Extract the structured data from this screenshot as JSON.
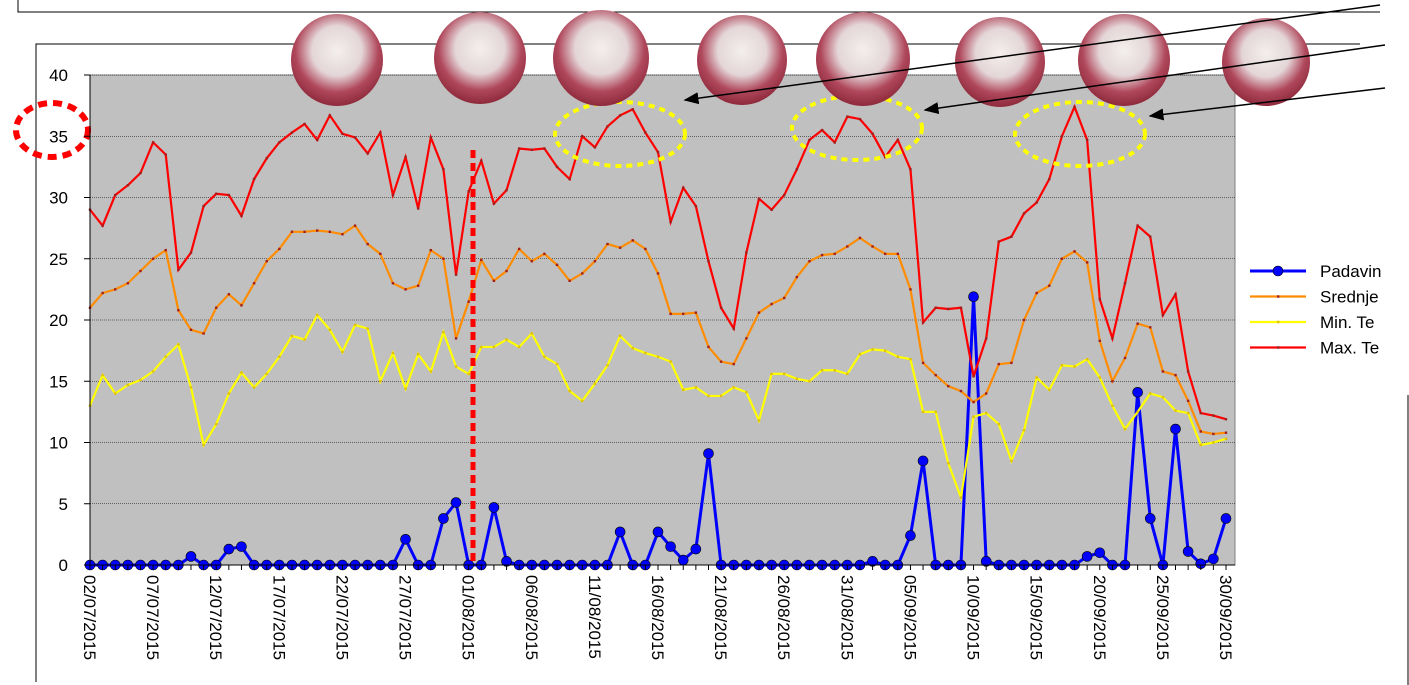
{
  "chart_data": {
    "type": "line",
    "categories": [
      "02/07/2015",
      null,
      null,
      null,
      null,
      "07/07/2015",
      null,
      null,
      null,
      null,
      "12/07/2015",
      null,
      null,
      null,
      null,
      "17/07/2015",
      null,
      null,
      null,
      null,
      "22/07/2015",
      null,
      null,
      null,
      null,
      "27/07/2015",
      null,
      null,
      null,
      null,
      "01/08/2015",
      null,
      null,
      null,
      null,
      "06/08/2015",
      null,
      null,
      null,
      null,
      "11/08/2015",
      null,
      null,
      null,
      null,
      "16/08/2015",
      null,
      null,
      null,
      null,
      "21/08/2015",
      null,
      null,
      null,
      null,
      "26/08/2015",
      null,
      null,
      null,
      null,
      "31/08/2015",
      null,
      null,
      null,
      null,
      "05/09/2015",
      null,
      null,
      null,
      null,
      "10/09/2015",
      null,
      null,
      null,
      null,
      "15/09/2015",
      null,
      null,
      null,
      null,
      "20/09/2015",
      null,
      null,
      null,
      null,
      "25/09/2015",
      null,
      null,
      null,
      null,
      "30/09/2015"
    ],
    "series": [
      {
        "name": "Padavin",
        "color": "#0000ff",
        "marker": "circle",
        "values": [
          0,
          0,
          0,
          0,
          0,
          0,
          0,
          0,
          0.7,
          0,
          0,
          1.3,
          1.5,
          0,
          0,
          0,
          0,
          0,
          0,
          0,
          0,
          0,
          0,
          0,
          0,
          2.1,
          0,
          0,
          3.8,
          5.1,
          0,
          0,
          4.7,
          0.3,
          0,
          0,
          0,
          0,
          0,
          0,
          0,
          0,
          2.7,
          0,
          0,
          2.7,
          1.5,
          0.4,
          1.3,
          9.1,
          0,
          0,
          0,
          0,
          0,
          0,
          0,
          0,
          0,
          0,
          0,
          0,
          0.3,
          0,
          0,
          2.4,
          8.5,
          0,
          0,
          0,
          21.9,
          0.3,
          0,
          0,
          0,
          0,
          0,
          0,
          0,
          0.7,
          1.0,
          0,
          0,
          14.1,
          3.8,
          0,
          11.1,
          1.1,
          0.1,
          0.5,
          3.8
        ]
      },
      {
        "name": "Srednje",
        "color": "#ff8c00",
        "marker": "dot",
        "values": [
          21.0,
          22.2,
          22.5,
          23.0,
          24.0,
          25.0,
          25.7,
          20.8,
          19.2,
          18.9,
          21.0,
          22.1,
          21.2,
          23.0,
          24.8,
          25.8,
          27.2,
          27.2,
          27.3,
          27.2,
          27.0,
          27.7,
          26.2,
          25.4,
          23.0,
          22.5,
          22.8,
          25.7,
          25.0,
          18.5,
          21.5,
          24.9,
          23.2,
          24.0,
          25.8,
          24.8,
          25.4,
          24.5,
          23.2,
          23.8,
          24.8,
          26.2,
          25.9,
          26.5,
          25.8,
          23.8,
          20.5,
          20.5,
          20.6,
          17.8,
          16.6,
          16.4,
          18.5,
          20.6,
          21.3,
          21.8,
          23.5,
          24.8,
          25.3,
          25.4,
          26.0,
          26.7,
          26.0,
          25.4,
          25.4,
          22.5,
          16.5,
          15.5,
          14.6,
          14.2,
          13.3,
          14.0,
          16.4,
          16.5,
          20.0,
          22.2,
          22.8,
          25.0,
          25.6,
          24.7,
          18.3,
          15.0,
          16.9,
          19.7,
          19.4,
          15.8,
          15.5,
          13.4,
          10.9,
          10.7,
          10.8
        ]
      },
      {
        "name": "Min. Te",
        "color": "#ffff00",
        "marker": "dot",
        "values": [
          13.0,
          15.5,
          14.0,
          14.7,
          15.1,
          15.8,
          17.0,
          18.0,
          14.5,
          9.8,
          11.5,
          14.0,
          15.7,
          14.5,
          15.6,
          17.0,
          18.7,
          18.4,
          20.4,
          19.2,
          17.4,
          19.6,
          19.3,
          15.0,
          17.3,
          14.4,
          17.2,
          15.8,
          19.0,
          16.2,
          15.6,
          17.8,
          17.8,
          18.4,
          17.8,
          18.9,
          17.0,
          16.4,
          14.2,
          13.4,
          14.8,
          16.3,
          18.7,
          17.7,
          17.3,
          17.0,
          16.6,
          14.3,
          14.5,
          13.8,
          13.8,
          14.5,
          14.1,
          11.8,
          15.6,
          15.6,
          15.2,
          15.0,
          15.9,
          15.9,
          15.6,
          17.2,
          17.6,
          17.5,
          17.0,
          16.8,
          12.5,
          12.5,
          8.3,
          5.5,
          12.1,
          12.4,
          11.5,
          8.5,
          11.0,
          15.3,
          14.3,
          16.3,
          16.2,
          16.8,
          15.3,
          13.0,
          11.1,
          12.5,
          14.0,
          13.7,
          12.6,
          12.4,
          9.8,
          10.0,
          10.3
        ]
      },
      {
        "name": "Max. Te",
        "color": "#ff0000",
        "marker": "dot",
        "values": [
          29.0,
          27.7,
          30.2,
          31.0,
          32.0,
          34.5,
          33.5,
          24.1,
          25.5,
          29.3,
          30.3,
          30.2,
          28.5,
          31.5,
          33.2,
          34.5,
          35.3,
          36.0,
          34.7,
          36.7,
          35.2,
          34.9,
          33.6,
          35.3,
          30.2,
          33.3,
          29.1,
          34.9,
          32.3,
          23.7,
          30.5,
          33.0,
          29.5,
          30.6,
          34.0,
          33.9,
          34.0,
          32.5,
          31.5,
          35.0,
          34.1,
          35.8,
          36.7,
          37.2,
          35.3,
          33.7,
          28.0,
          30.8,
          29.3,
          24.8,
          21.0,
          19.3,
          25.5,
          29.9,
          29.0,
          30.2,
          32.3,
          34.7,
          35.5,
          34.5,
          36.6,
          36.4,
          35.2,
          33.3,
          34.7,
          32.3,
          19.8,
          21.0,
          20.9,
          21.0,
          15.4,
          18.5,
          26.4,
          26.8,
          28.7,
          29.6,
          31.5,
          35.0,
          37.4,
          34.7,
          21.7,
          18.5,
          23.0,
          27.7,
          26.8,
          20.4,
          22.1,
          15.8,
          12.4,
          12.2,
          11.9
        ]
      }
    ],
    "ylim": [
      0,
      40
    ],
    "yticks": [
      0,
      5,
      10,
      15,
      20,
      25,
      30,
      35,
      40
    ],
    "grid": true,
    "plot_background": "#c0c0c0",
    "legend": "right"
  }
}
